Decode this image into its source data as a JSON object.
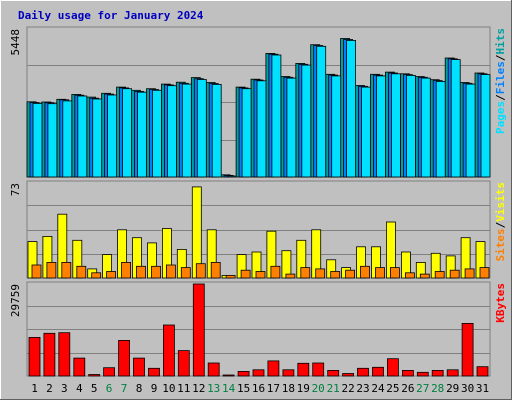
{
  "chart_data": {
    "type": "bar",
    "title": "Daily usage for January 2024",
    "categories": [
      "1",
      "2",
      "3",
      "4",
      "5",
      "6",
      "7",
      "8",
      "9",
      "10",
      "11",
      "12",
      "13",
      "14",
      "15",
      "16",
      "17",
      "18",
      "19",
      "20",
      "21",
      "22",
      "23",
      "24",
      "25",
      "26",
      "27",
      "28",
      "29",
      "30",
      "31"
    ],
    "weekend_days": [
      "6",
      "7",
      "13",
      "14",
      "20",
      "21",
      "27",
      "28"
    ],
    "colors": {
      "title": "#0000c0",
      "background": "#c0c0c0",
      "frame": "#808080",
      "hits": "#00a0a0",
      "files": "#0080ff",
      "pages": "#00e0ff",
      "visits": "#ffff00",
      "sites": "#ff8000",
      "kbytes": "#ff0000",
      "weekday_label": "#000000",
      "weekend_label": "#008040"
    },
    "panels": [
      {
        "id": "hits-files-pages",
        "ymax_label": "5448",
        "ylim": [
          0,
          5448
        ],
        "legend": [
          {
            "text": "Pages",
            "color": "#00e0ff"
          },
          {
            "text": "Files",
            "color": "#0080ff"
          },
          {
            "text": "Hits",
            "color": "#00a0a0"
          }
        ],
        "legend_separator": "/",
        "series": [
          {
            "name": "Hits",
            "color": "#00a0a0",
            "values": [
              2770,
              2760,
              2860,
              3040,
              2940,
              3080,
              3310,
              3190,
              3250,
              3420,
              3490,
              3660,
              3480,
              80,
              3310,
              3600,
              4550,
              3700,
              4180,
              4870,
              3780,
              5100,
              3370,
              3780,
              3860,
              3800,
              3700,
              3580,
              4380,
              3480,
              3830
            ]
          },
          {
            "name": "Files",
            "color": "#0080ff",
            "values": [
              2740,
              2730,
              2840,
              3010,
              2900,
              3050,
              3280,
              3150,
              3220,
              3390,
              3450,
              3620,
              3440,
              60,
              3280,
              3570,
              4520,
              3670,
              4150,
              4840,
              3750,
              5060,
              3340,
              3750,
              3830,
              3770,
              3670,
              3550,
              4350,
              3450,
              3800
            ]
          },
          {
            "name": "Pages",
            "color": "#00e0ff",
            "values": [
              2710,
              2700,
              2800,
              2980,
              2870,
              3020,
              3250,
              3120,
              3190,
              3360,
              3420,
              3590,
              3410,
              30,
              3250,
              3540,
              4490,
              3640,
              4120,
              4810,
              3720,
              5030,
              3310,
              3720,
              3800,
              3740,
              3640,
              3520,
              4320,
              3420,
              3770
            ]
          }
        ]
      },
      {
        "id": "visits-sites",
        "ymax_label": "73",
        "ylim": [
          0,
          73
        ],
        "legend": [
          {
            "text": "Sites",
            "color": "#ff8000"
          },
          {
            "text": "Visits",
            "color": "#ffff00"
          }
        ],
        "legend_separator": "/",
        "series": [
          {
            "name": "Visits",
            "color": "#ffff00",
            "values": [
              28,
              32,
              49,
              29,
              7,
              18,
              37,
              31,
              27,
              38,
              22,
              70,
              37,
              2,
              18,
              20,
              36,
              21,
              29,
              37,
              14,
              8,
              24,
              24,
              43,
              20,
              12,
              19,
              17,
              31,
              28
            ]
          },
          {
            "name": "Sites",
            "color": "#ff8000",
            "values": [
              10,
              12,
              12,
              9,
              4,
              5,
              12,
              9,
              9,
              10,
              8,
              11,
              12,
              2,
              6,
              5,
              9,
              3,
              8,
              7,
              5,
              6,
              9,
              8,
              8,
              4,
              3,
              5,
              6,
              7,
              8
            ]
          }
        ]
      },
      {
        "id": "kbytes",
        "ymax_label": "29759",
        "ylim": [
          0,
          29759
        ],
        "legend": [
          {
            "text": "KBytes",
            "color": "#ff0000"
          }
        ],
        "legend_separator": "/",
        "series": [
          {
            "name": "KBytes",
            "color": "#ff0000",
            "values": [
              12500,
              13800,
              14000,
              5800,
              500,
              2700,
              11500,
              5800,
              2500,
              16500,
              8200,
              29759,
              4200,
              300,
              1500,
              2000,
              4900,
              2000,
              4100,
              4200,
              1800,
              800,
              2500,
              2800,
              5600,
              1800,
              1200,
              1800,
              2000,
              17000,
              3000
            ]
          }
        ]
      }
    ]
  }
}
